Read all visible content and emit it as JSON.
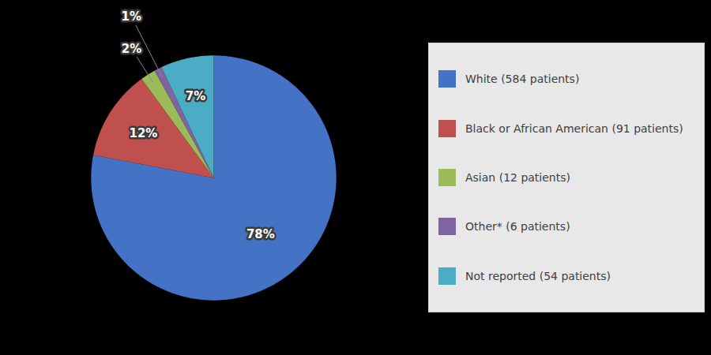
{
  "chart_data": {
    "type": "pie",
    "categories": [
      "White (584 patients)",
      "Black or African American (91 patients)",
      "Asian (12 patients)",
      "Other* (6 patients)",
      "Not reported (54 patients)"
    ],
    "values": [
      78,
      12,
      2,
      1,
      7
    ],
    "value_labels": [
      "78%",
      "12%",
      "2%",
      "1%",
      "7%"
    ],
    "colors": [
      "#4472C4",
      "#C0504D",
      "#9BBB59",
      "#8064A2",
      "#4BACC6"
    ],
    "data_labels": true,
    "legend": "right"
  }
}
